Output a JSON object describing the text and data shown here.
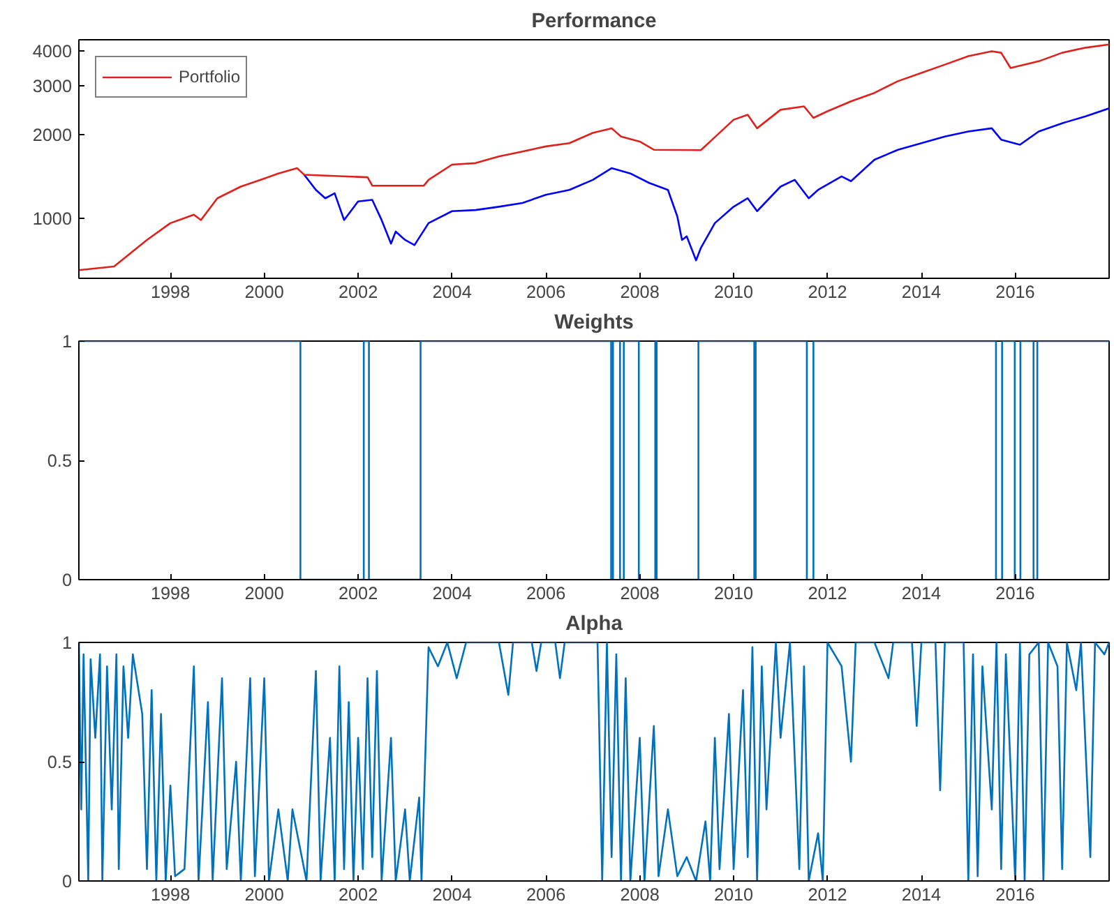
{
  "chart_data": [
    {
      "type": "line",
      "title": "Performance",
      "log": "y",
      "legend": "top left",
      "grid": false,
      "xlim": [
        1996.05,
        2018.0
      ],
      "ylim": [
        607,
        4400
      ],
      "xticks": [
        1998,
        2000,
        2002,
        2004,
        2006,
        2008,
        2010,
        2012,
        2014,
        2016
      ],
      "yticks": [
        1000,
        2000,
        3000,
        4000
      ],
      "series": [
        {
          "color": "#0000ff",
          "x": [
            2000.85,
            2001.1,
            2001.3,
            2001.5,
            2001.7,
            2002.0,
            2002.3,
            2002.5,
            2002.7,
            2002.8,
            2003.0,
            2003.2,
            2003.5,
            2004.0,
            2004.5,
            2005.0,
            2005.5,
            2006.0,
            2006.5,
            2007.0,
            2007.4,
            2007.8,
            2008.2,
            2008.6,
            2008.8,
            2008.9,
            2009.0,
            2009.2,
            2009.3,
            2009.6,
            2010.0,
            2010.3,
            2010.5,
            2011.0,
            2011.3,
            2011.6,
            2011.8,
            2012.3,
            2012.5,
            2013.0,
            2013.5,
            2014.0,
            2014.5,
            2015.0,
            2015.5,
            2015.7,
            2016.1,
            2016.5,
            2017.0,
            2017.5,
            2018.0
          ],
          "values": [
            1435,
            1265,
            1180,
            1230,
            985,
            1150,
            1165,
            985,
            810,
            895,
            835,
            800,
            960,
            1060,
            1070,
            1100,
            1135,
            1215,
            1265,
            1375,
            1515,
            1450,
            1340,
            1265,
            1015,
            835,
            860,
            705,
            780,
            960,
            1100,
            1180,
            1060,
            1300,
            1375,
            1180,
            1265,
            1415,
            1360,
            1625,
            1765,
            1865,
            1970,
            2055,
            2110,
            1920,
            1840,
            2055,
            2200,
            2330,
            2490
          ]
        },
        {
          "name": "Portfolio",
          "color": "#e0201b",
          "x": [
            1996.05,
            1996.8,
            1997.5,
            1998.0,
            1998.5,
            1998.65,
            1999.0,
            1999.5,
            2000.0,
            2000.3,
            2000.7,
            2000.85,
            2002.2,
            2002.3,
            2003.4,
            2003.5,
            2004.0,
            2004.5,
            2005.0,
            2005.5,
            2006.0,
            2006.5,
            2007.0,
            2007.4,
            2007.6,
            2008.0,
            2008.3,
            2009.3,
            2009.5,
            2010.0,
            2010.3,
            2010.5,
            2011.0,
            2011.5,
            2011.7,
            2012.0,
            2012.5,
            2013.0,
            2013.5,
            2014.0,
            2014.5,
            2015.0,
            2015.5,
            2015.7,
            2015.9,
            2016.5,
            2017.0,
            2017.5,
            2018.0
          ],
          "values": [
            650,
            670,
            835,
            960,
            1030,
            985,
            1180,
            1300,
            1390,
            1450,
            1515,
            1435,
            1405,
            1310,
            1310,
            1375,
            1560,
            1580,
            1670,
            1740,
            1815,
            1865,
            2030,
            2110,
            1970,
            1890,
            1765,
            1760,
            1890,
            2265,
            2360,
            2110,
            2460,
            2530,
            2300,
            2430,
            2640,
            2830,
            3120,
            3340,
            3580,
            3840,
            4000,
            3950,
            3480,
            3680,
            3950,
            4120,
            4230
          ]
        }
      ]
    },
    {
      "type": "step",
      "title": "Weights",
      "grid": false,
      "xlim": [
        1996.05,
        2018.0
      ],
      "ylim": [
        0,
        1
      ],
      "xticks": [
        1998,
        2000,
        2002,
        2004,
        2006,
        2008,
        2010,
        2012,
        2014,
        2016
      ],
      "yticks": [
        0,
        0.5,
        1
      ],
      "series": [
        {
          "color": "#0072bd",
          "x": [
            1996.05,
            2000.77,
            2002.12,
            2002.23,
            2003.33,
            2007.39,
            2007.43,
            2007.58,
            2007.66,
            2007.98,
            2008.33,
            2008.36,
            2009.25,
            2010.44,
            2010.47,
            2011.56,
            2011.7,
            2015.59,
            2015.72,
            2015.99,
            2016.11,
            2016.39,
            2016.47,
            2018.0
          ],
          "values": [
            1,
            0,
            1,
            0,
            1,
            0,
            1,
            0,
            1,
            0,
            1,
            0,
            1,
            0,
            1,
            0,
            1,
            0,
            1,
            0,
            1,
            0,
            1,
            1
          ]
        }
      ]
    },
    {
      "type": "line",
      "title": "Alpha",
      "grid": false,
      "xlim": [
        1996.05,
        2018.0
      ],
      "ylim": [
        0,
        1
      ],
      "xticks": [
        1998,
        2000,
        2002,
        2004,
        2006,
        2008,
        2010,
        2012,
        2014,
        2016
      ],
      "yticks": [
        0,
        0.5,
        1
      ],
      "series": [
        {
          "color": "#0072bd",
          "x": [
            1996.05,
            1996.1,
            1996.15,
            1996.25,
            1996.3,
            1996.4,
            1996.5,
            1996.55,
            1996.65,
            1996.75,
            1996.85,
            1996.9,
            1997.0,
            1997.1,
            1997.2,
            1997.4,
            1997.5,
            1997.6,
            1997.7,
            1997.8,
            1997.9,
            1998.0,
            1998.1,
            1998.3,
            1998.5,
            1998.6,
            1998.8,
            1998.9,
            1999.1,
            1999.2,
            1999.4,
            1999.5,
            1999.7,
            1999.8,
            2000.0,
            2000.1,
            2000.3,
            2000.5,
            2000.6,
            2000.9,
            2001.1,
            2001.2,
            2001.4,
            2001.5,
            2001.6,
            2001.7,
            2001.8,
            2001.9,
            2002.0,
            2002.1,
            2002.2,
            2002.3,
            2002.4,
            2002.5,
            2002.7,
            2002.8,
            2003.0,
            2003.1,
            2003.3,
            2003.35,
            2003.5,
            2003.7,
            2003.9,
            2004.1,
            2004.3,
            2005.0,
            2005.2,
            2005.3,
            2005.7,
            2005.8,
            2005.9,
            2006.2,
            2006.3,
            2006.4,
            2007.1,
            2007.2,
            2007.3,
            2007.4,
            2007.5,
            2007.6,
            2007.7,
            2007.8,
            2008.0,
            2008.1,
            2008.3,
            2008.4,
            2008.6,
            2008.8,
            2009.0,
            2009.2,
            2009.4,
            2009.5,
            2009.6,
            2009.7,
            2009.9,
            2010.0,
            2010.2,
            2010.3,
            2010.4,
            2010.5,
            2010.6,
            2010.7,
            2010.9,
            2011.0,
            2011.2,
            2011.4,
            2011.5,
            2011.6,
            2011.8,
            2011.9,
            2012.0,
            2012.3,
            2012.5,
            2012.6,
            2013.0,
            2013.3,
            2013.4,
            2013.8,
            2013.9,
            2014.0,
            2014.3,
            2014.4,
            2014.5,
            2014.9,
            2015.0,
            2015.1,
            2015.2,
            2015.3,
            2015.5,
            2015.6,
            2015.7,
            2015.8,
            2016.0,
            2016.1,
            2016.2,
            2016.3,
            2016.5,
            2016.6,
            2016.7,
            2016.9,
            2017.0,
            2017.1,
            2017.3,
            2017.4,
            2017.6,
            2017.7,
            2017.9,
            2018.0
          ],
          "values": [
            1.0,
            0.3,
            0.95,
            0.0,
            0.93,
            0.6,
            0.95,
            0.0,
            0.9,
            0.3,
            0.95,
            0.05,
            0.9,
            0.6,
            0.95,
            0.7,
            0.05,
            0.8,
            0.0,
            0.7,
            0.0,
            0.4,
            0.02,
            0.05,
            0.9,
            0.0,
            0.75,
            0.0,
            0.85,
            0.05,
            0.5,
            0.0,
            0.85,
            0.02,
            0.85,
            0.0,
            0.3,
            0.0,
            0.3,
            0.0,
            0.88,
            0.0,
            0.6,
            0.0,
            0.9,
            0.05,
            0.75,
            0.0,
            0.6,
            0.05,
            0.85,
            0.1,
            0.88,
            0.0,
            0.6,
            0.0,
            0.3,
            0.0,
            0.35,
            0.0,
            0.98,
            0.9,
            1.0,
            0.85,
            1.0,
            1.0,
            0.78,
            1.0,
            1.0,
            0.88,
            1.0,
            1.0,
            0.85,
            1.0,
            1.0,
            0.0,
            1.0,
            0.1,
            0.95,
            0.0,
            0.85,
            0.0,
            0.6,
            0.0,
            0.65,
            0.02,
            0.3,
            0.02,
            0.1,
            0.0,
            0.25,
            0.0,
            0.6,
            0.05,
            0.7,
            0.05,
            0.8,
            0.1,
            0.98,
            0.0,
            0.9,
            0.3,
            1.0,
            0.6,
            1.0,
            0.05,
            0.9,
            0.0,
            0.2,
            0.0,
            1.0,
            0.9,
            0.5,
            1.0,
            1.0,
            0.85,
            1.0,
            1.0,
            0.65,
            1.0,
            1.0,
            0.38,
            1.0,
            1.0,
            0.0,
            0.95,
            0.02,
            0.9,
            0.3,
            1.0,
            0.05,
            0.95,
            0.0,
            1.0,
            0.0,
            0.95,
            1.0,
            0.0,
            1.0,
            0.9,
            0.05,
            1.0,
            0.8,
            1.0,
            0.1,
            1.0,
            0.95,
            1.0
          ]
        }
      ]
    }
  ]
}
